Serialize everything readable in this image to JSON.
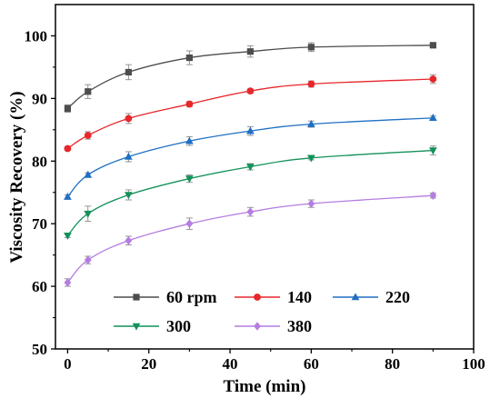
{
  "chart_data": {
    "type": "line",
    "xlabel": "Time (min)",
    "ylabel": "Viscosity Recovery (%)",
    "xlim": [
      -3,
      100
    ],
    "ylim": [
      50,
      105
    ],
    "xticks": [
      0,
      20,
      40,
      60,
      80,
      100
    ],
    "yticks": [
      50,
      60,
      70,
      80,
      90,
      100
    ],
    "grid": false,
    "legend_position": "bottom-center",
    "x": [
      0,
      5,
      15,
      30,
      45,
      60,
      90
    ],
    "series": [
      {
        "name": "60 rpm",
        "color": "#4d4d4d",
        "marker": "square",
        "values": [
          88.4,
          91.1,
          94.2,
          96.5,
          97.5,
          98.2,
          98.5
        ],
        "errors": [
          0.6,
          1.1,
          1.2,
          1.1,
          0.9,
          0.7,
          0.3
        ]
      },
      {
        "name": "140",
        "color": "#e8262b",
        "marker": "circle",
        "values": [
          82.0,
          84.1,
          86.8,
          89.1,
          91.2,
          92.3,
          93.1
        ],
        "errors": [
          0.3,
          0.6,
          0.8,
          0.4,
          0.3,
          0.5,
          0.7
        ]
      },
      {
        "name": "220",
        "color": "#1f6fc4",
        "marker": "triangle-up",
        "values": [
          74.3,
          77.8,
          80.7,
          83.2,
          84.8,
          85.9,
          86.9
        ],
        "errors": [
          0.3,
          0.3,
          0.8,
          0.7,
          0.7,
          0.5,
          0.3
        ]
      },
      {
        "name": "300",
        "color": "#14915a",
        "marker": "triangle-down",
        "values": [
          68.1,
          71.6,
          74.6,
          77.2,
          79.1,
          80.5,
          81.7
        ],
        "errors": [
          0.3,
          1.2,
          0.8,
          0.6,
          0.5,
          0.3,
          0.7
        ]
      },
      {
        "name": "380",
        "color": "#b47de0",
        "marker": "diamond",
        "values": [
          60.6,
          64.2,
          67.3,
          70.0,
          71.9,
          73.2,
          74.5
        ],
        "errors": [
          0.6,
          0.6,
          0.7,
          0.9,
          0.7,
          0.6,
          0.4
        ]
      }
    ]
  }
}
